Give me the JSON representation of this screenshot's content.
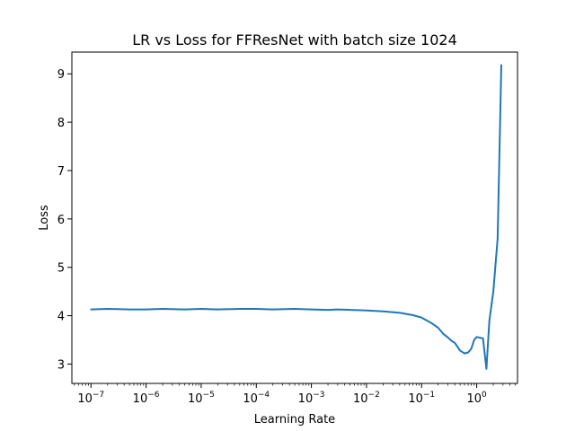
{
  "chart_data": {
    "type": "line",
    "title": "LR vs Loss for FFResNet with batch size 1024",
    "xlabel": "Learning Rate",
    "ylabel": "Loss",
    "xscale": "log",
    "xlim": [
      4.5e-08,
      5.5
    ],
    "ylim": [
      2.6,
      9.45
    ],
    "xticks": [
      1e-07,
      1e-06,
      1e-05,
      0.0001,
      0.001,
      0.01,
      0.1,
      1
    ],
    "xtick_labels": [
      {
        "base": "10",
        "exp": "−7"
      },
      {
        "base": "10",
        "exp": "−6"
      },
      {
        "base": "10",
        "exp": "−5"
      },
      {
        "base": "10",
        "exp": "−4"
      },
      {
        "base": "10",
        "exp": "−3"
      },
      {
        "base": "10",
        "exp": "−2"
      },
      {
        "base": "10",
        "exp": "−1"
      },
      {
        "base": "10",
        "exp": "0"
      }
    ],
    "yticks": [
      3,
      4,
      5,
      6,
      7,
      8,
      9
    ],
    "ytick_labels": [
      "3",
      "4",
      "5",
      "6",
      "7",
      "8",
      "9"
    ],
    "grid": false,
    "color": "#1f77b4",
    "series": [
      {
        "x": [
          1e-07,
          2e-07,
          5e-07,
          1e-06,
          2e-06,
          5e-06,
          1e-05,
          2e-05,
          5e-05,
          0.0001,
          0.0002,
          0.0005,
          0.001,
          0.002,
          0.003,
          0.005,
          0.01,
          0.02,
          0.04,
          0.07,
          0.1,
          0.15,
          0.2,
          0.25,
          0.3,
          0.35,
          0.4,
          0.5,
          0.6,
          0.7,
          0.8,
          0.9,
          1.0,
          1.1,
          1.3,
          1.5,
          1.7,
          2.0,
          2.4,
          2.8
        ],
        "y": [
          4.13,
          4.14,
          4.13,
          4.13,
          4.14,
          4.13,
          4.14,
          4.13,
          4.14,
          4.14,
          4.13,
          4.14,
          4.13,
          4.12,
          4.13,
          4.12,
          4.11,
          4.09,
          4.06,
          4.01,
          3.96,
          3.85,
          3.75,
          3.62,
          3.55,
          3.48,
          3.44,
          3.28,
          3.22,
          3.24,
          3.32,
          3.5,
          3.56,
          3.55,
          3.53,
          2.9,
          3.9,
          4.5,
          5.6,
          9.18
        ]
      }
    ]
  }
}
